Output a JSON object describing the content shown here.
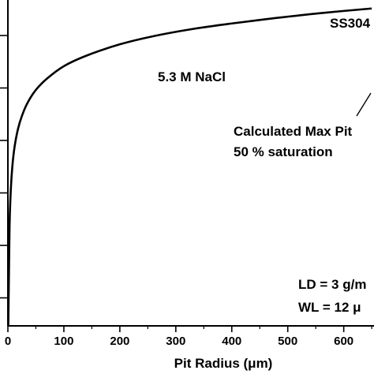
{
  "chart_data": {
    "type": "line",
    "title": "",
    "xlabel": "Pit Radius (μm)",
    "ylabel": "",
    "xlim": [
      0,
      650
    ],
    "x_ticks": [
      0,
      100,
      200,
      300,
      400,
      500,
      600
    ],
    "x_tick_labels": [
      "0",
      "100",
      "200",
      "300",
      "400",
      "500",
      "600"
    ],
    "y_tick_count": 6,
    "grid": false,
    "series": [
      {
        "name": "5.3 M NaCl",
        "color": "#000000",
        "x": [
          1,
          2,
          3,
          5,
          8,
          12,
          18,
          25,
          35,
          50,
          70,
          100,
          140,
          200,
          260,
          330,
          400,
          480,
          560,
          650
        ],
        "y": [
          0.04,
          0.18,
          0.31,
          0.41,
          0.49,
          0.55,
          0.604,
          0.644,
          0.684,
          0.724,
          0.759,
          0.797,
          0.829,
          0.864,
          0.889,
          0.911,
          0.928,
          0.945,
          0.96,
          0.974
        ]
      }
    ],
    "annotations": [
      {
        "text": "SS304"
      },
      {
        "text": "5.3 M NaCl"
      },
      {
        "text": "Calculated Max Pit"
      },
      {
        "text": "50 % saturation"
      },
      {
        "text": "LD = 3 g/m"
      },
      {
        "text": "WL = 12 μ"
      }
    ]
  }
}
